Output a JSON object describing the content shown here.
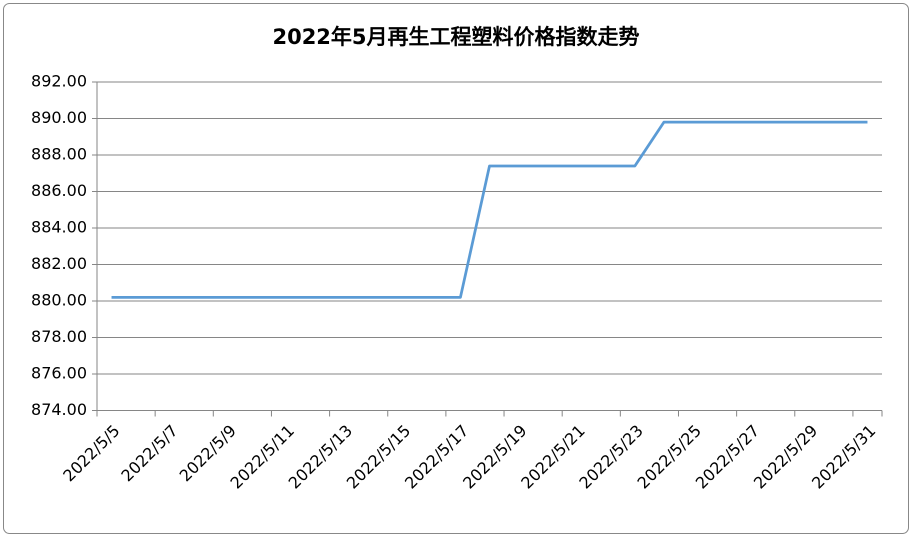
{
  "chart_data": {
    "type": "line",
    "title": "2022年5月再生工程塑料价格指数走势",
    "x": [
      "2022/5/5",
      "2022/5/6",
      "2022/5/9",
      "2022/5/10",
      "2022/5/11",
      "2022/5/12",
      "2022/5/13",
      "2022/5/16",
      "2022/5/17",
      "2022/5/18",
      "2022/5/19",
      "2022/5/20",
      "2022/5/23",
      "2022/5/24",
      "2022/5/25",
      "2022/5/26",
      "2022/5/27",
      "2022/5/30",
      "2022/5/31"
    ],
    "series": [
      {
        "color": "#5b9bd5",
        "values": [
          880.2,
          880.2,
          880.2,
          880.2,
          880.2,
          880.2,
          880.2,
          880.2,
          880.2,
          887.4,
          887.4,
          887.4,
          887.4,
          889.8,
          889.8,
          889.8,
          889.8,
          889.8,
          889.8
        ]
      }
    ],
    "xlim": [
      "2022/5/5",
      "2022/5/31"
    ],
    "xticks": [
      "2022/5/5",
      "2022/5/7",
      "2022/5/9",
      "2022/5/11",
      "2022/5/13",
      "2022/5/15",
      "2022/5/17",
      "2022/5/19",
      "2022/5/21",
      "2022/5/23",
      "2022/5/25",
      "2022/5/27",
      "2022/5/29",
      "2022/5/31"
    ],
    "ylim": [
      874,
      892
    ],
    "yticks": [
      {
        "value": 874,
        "label": "874.00"
      },
      {
        "value": 876,
        "label": "876.00"
      },
      {
        "value": 878,
        "label": "878.00"
      },
      {
        "value": 880,
        "label": "880.00"
      },
      {
        "value": 882,
        "label": "882.00"
      },
      {
        "value": 884,
        "label": "884.00"
      },
      {
        "value": 886,
        "label": "886.00"
      },
      {
        "value": 888,
        "label": "888.00"
      },
      {
        "value": 890,
        "label": "890.00"
      },
      {
        "value": 892,
        "label": "892.00"
      }
    ],
    "grid": true
  }
}
